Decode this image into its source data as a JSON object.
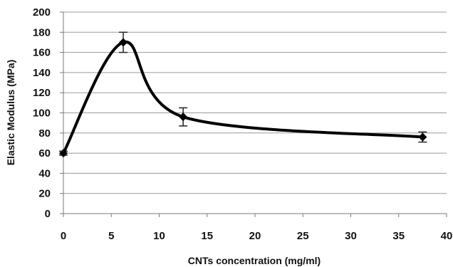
{
  "chart_data": {
    "type": "line",
    "title": "",
    "xlabel": "CNTs concentration (mg/ml)",
    "ylabel": "Elastic Modulus (MPa)",
    "xlim": [
      0,
      40
    ],
    "ylim": [
      0,
      200
    ],
    "x_ticks": [
      0,
      5,
      10,
      15,
      20,
      25,
      30,
      35,
      40
    ],
    "y_ticks": [
      0,
      20,
      40,
      60,
      80,
      100,
      120,
      140,
      160,
      180,
      200
    ],
    "grid": "horizontal",
    "legend": "none",
    "smoothed": true,
    "series": [
      {
        "x": [
          0,
          6.25,
          12.5,
          37.5
        ],
        "y": [
          60,
          170,
          96,
          76
        ],
        "error": [
          2,
          10,
          9,
          5
        ],
        "marker": "diamond",
        "color": "#000000"
      }
    ]
  }
}
